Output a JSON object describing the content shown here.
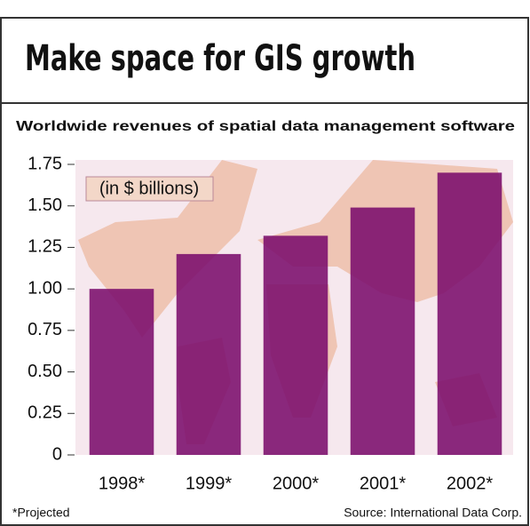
{
  "chart_data": {
    "type": "bar",
    "title": "Make space for GIS growth",
    "subtitle": "Worldwide revenues of spatial data management software",
    "annotation": "(in $ billions)",
    "categories": [
      "1998*",
      "1999*",
      "2000*",
      "2001*",
      "2002*"
    ],
    "values": [
      1.0,
      1.21,
      1.32,
      1.49,
      1.7
    ],
    "color": "#7b0c6c",
    "ylim": [
      0,
      1.75
    ],
    "yticks": [
      {
        "value": 0,
        "label": "0"
      },
      {
        "value": 0.25,
        "label": "0.25"
      },
      {
        "value": 0.5,
        "label": "0.50"
      },
      {
        "value": 0.75,
        "label": "0.75"
      },
      {
        "value": 1,
        "label": "1.00"
      },
      {
        "value": 1.25,
        "label": "1.25"
      },
      {
        "value": 1.5,
        "label": "1.50"
      },
      {
        "value": 1.75,
        "label": "1.75"
      }
    ],
    "footnote": "*Projected",
    "source": "Source: International Data Corp."
  }
}
